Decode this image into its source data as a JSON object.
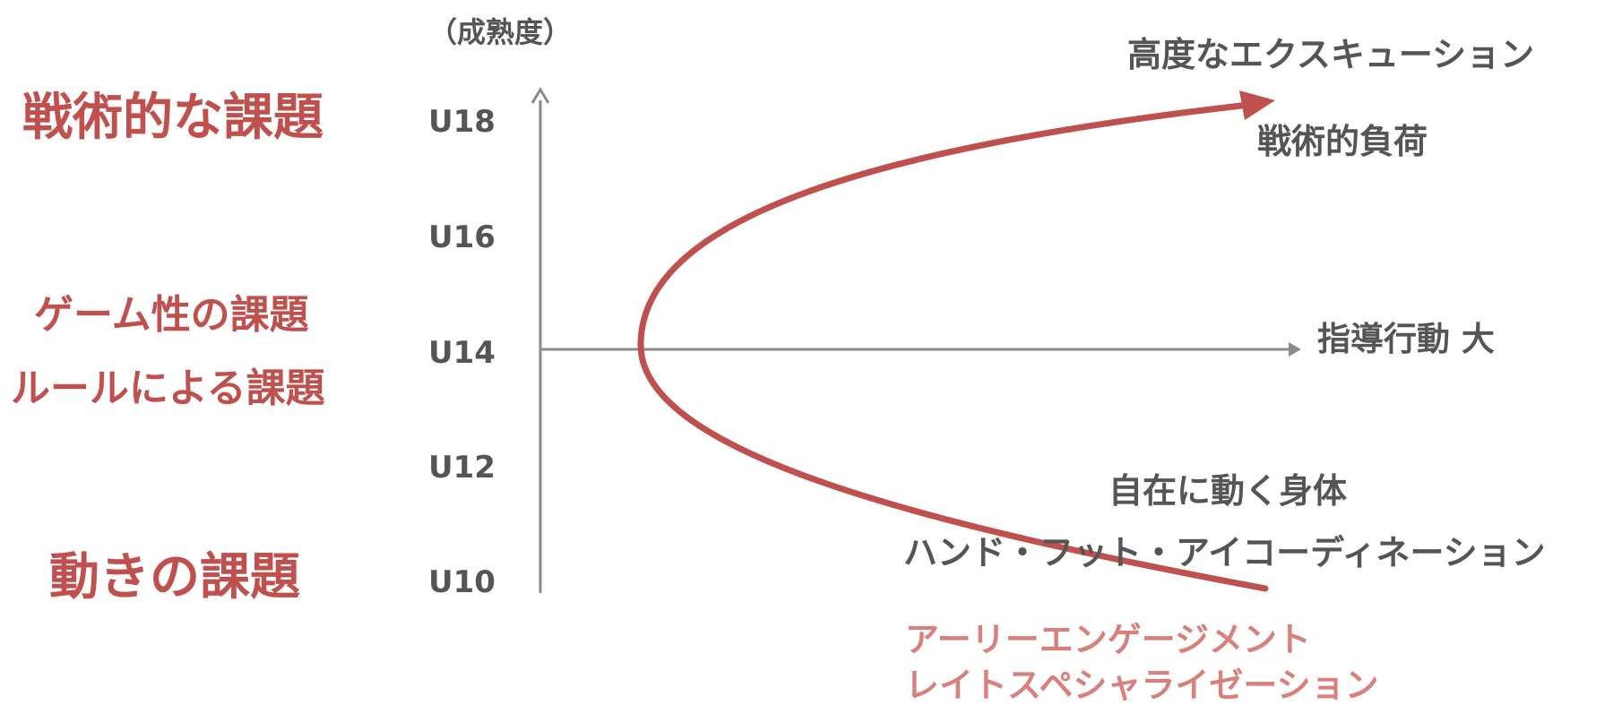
{
  "left_labels": {
    "tactical": "戦術的な課題",
    "game": "ゲーム性の課題",
    "rules": "ルールによる課題",
    "movement": "動きの課題"
  },
  "axis": {
    "y_unit": "（成熟度）",
    "ticks": [
      "U18",
      "U16",
      "U14",
      "U12",
      "U10"
    ],
    "x_label": "指導行動 大"
  },
  "annotations": {
    "advanced_execution": "高度なエクスキューション",
    "tactical_load": "戦術的負荷",
    "free_body": "自在に動く身体",
    "coordination": "ハンド・フット・アイコーディネーション",
    "early_engagement": "アーリーエンゲージメント",
    "late_specialization": "レイトスペシャライゼーション"
  },
  "colors": {
    "accent": "#c0504d",
    "accent_light": "#d9807c",
    "axis": "#8a8a8a",
    "text": "#555555"
  }
}
